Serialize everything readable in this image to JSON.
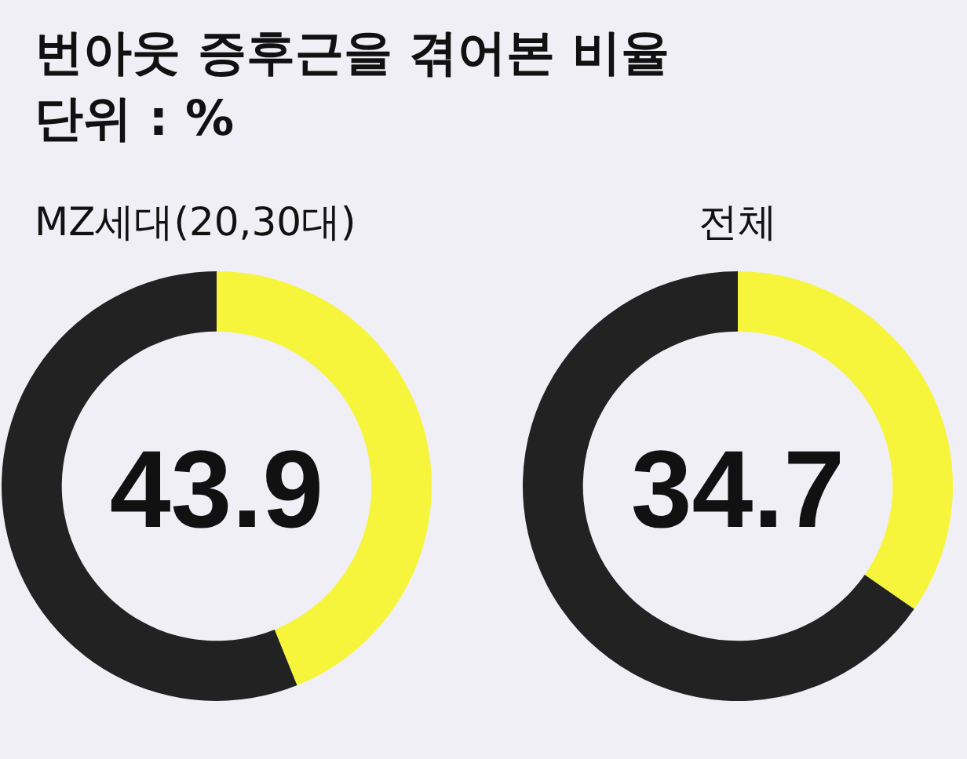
{
  "chart_data": [
    {
      "type": "donut",
      "title": "번아웃 증후근을 겪어본 비율",
      "subtitle": "단위 : %",
      "xlabel": "MZ세대(20,30대)",
      "categories": [
        null,
        null
      ],
      "values": [
        43.9,
        56.1
      ],
      "colors": [
        "#f7f53b",
        "#222222"
      ],
      "annotations": [
        "43.9"
      ]
    },
    {
      "type": "donut",
      "xlabel": "전체",
      "categories": [
        null,
        null
      ],
      "values": [
        34.7,
        65.3
      ],
      "colors": [
        "#f7f53b",
        "#222222"
      ],
      "annotations": [
        "34.7"
      ]
    }
  ]
}
